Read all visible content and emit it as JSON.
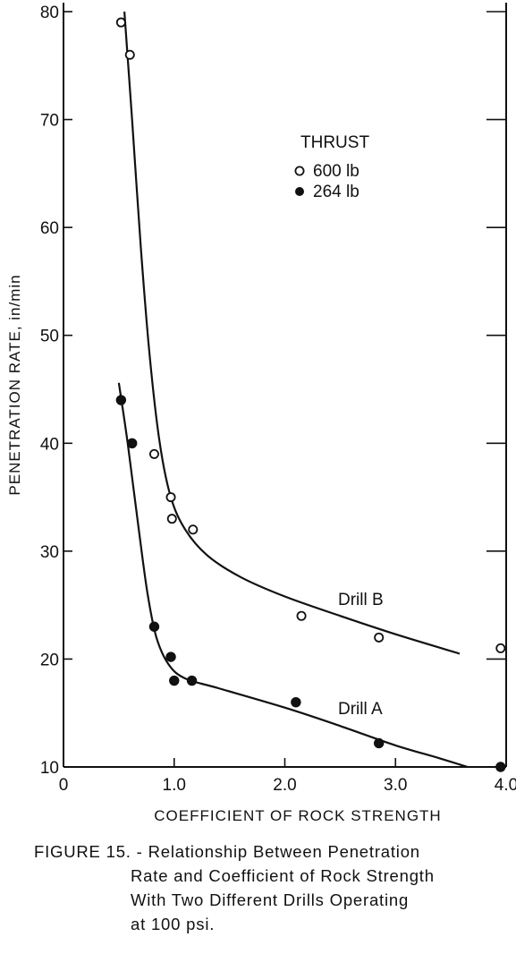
{
  "chart_data": {
    "type": "scatter",
    "xlabel": "COEFFICIENT OF ROCK STRENGTH",
    "ylabel": "PENETRATION RATE, in/min",
    "xlim": [
      0,
      4.0
    ],
    "ylim": [
      10,
      80
    ],
    "x_ticks": [
      0,
      1.0,
      2.0,
      3.0,
      4.0
    ],
    "x_tick_labels": [
      "0",
      "1.0",
      "2.0",
      "3.0",
      "4.0"
    ],
    "y_ticks": [
      10,
      20,
      30,
      40,
      50,
      60,
      70,
      80
    ],
    "y_tick_labels": [
      "10",
      "20",
      "30",
      "40",
      "50",
      "60",
      "70",
      "80"
    ],
    "grid": false,
    "legend": {
      "title": "THRUST",
      "position": "upper-right",
      "entries": [
        {
          "label": "600 lb",
          "marker": "open-circle"
        },
        {
          "label": "264 lb",
          "marker": "filled-circle"
        }
      ]
    },
    "series": [
      {
        "name": "600 lb",
        "marker": "open-circle",
        "points": [
          {
            "x": 0.52,
            "y": 79
          },
          {
            "x": 0.6,
            "y": 76
          },
          {
            "x": 0.82,
            "y": 39
          },
          {
            "x": 0.97,
            "y": 35
          },
          {
            "x": 0.98,
            "y": 33
          },
          {
            "x": 1.17,
            "y": 32
          },
          {
            "x": 2.15,
            "y": 24
          },
          {
            "x": 2.85,
            "y": 22
          },
          {
            "x": 3.95,
            "y": 21
          }
        ]
      },
      {
        "name": "264 lb",
        "marker": "filled-circle",
        "points": [
          {
            "x": 0.52,
            "y": 44
          },
          {
            "x": 0.62,
            "y": 40
          },
          {
            "x": 0.82,
            "y": 23
          },
          {
            "x": 0.97,
            "y": 20.2
          },
          {
            "x": 1.0,
            "y": 18
          },
          {
            "x": 1.16,
            "y": 18
          },
          {
            "x": 2.1,
            "y": 16
          },
          {
            "x": 2.85,
            "y": 12.2
          },
          {
            "x": 3.95,
            "y": 10
          }
        ]
      }
    ],
    "curves": [
      {
        "label": "Drill B",
        "points": [
          {
            "x": 0.55,
            "y": 80
          },
          {
            "x": 0.62,
            "y": 70
          },
          {
            "x": 0.7,
            "y": 58
          },
          {
            "x": 0.78,
            "y": 48
          },
          {
            "x": 0.87,
            "y": 40
          },
          {
            "x": 0.97,
            "y": 35
          },
          {
            "x": 1.1,
            "y": 32
          },
          {
            "x": 1.3,
            "y": 29.6
          },
          {
            "x": 1.6,
            "y": 27.6
          },
          {
            "x": 2.0,
            "y": 25.8
          },
          {
            "x": 2.5,
            "y": 24
          },
          {
            "x": 3.0,
            "y": 22.3
          },
          {
            "x": 3.58,
            "y": 20.5
          }
        ]
      },
      {
        "label": "Drill A",
        "points": [
          {
            "x": 0.5,
            "y": 45.6
          },
          {
            "x": 0.58,
            "y": 40
          },
          {
            "x": 0.68,
            "y": 32
          },
          {
            "x": 0.76,
            "y": 26
          },
          {
            "x": 0.84,
            "y": 22
          },
          {
            "x": 0.95,
            "y": 19.5
          },
          {
            "x": 1.1,
            "y": 18.2
          },
          {
            "x": 1.4,
            "y": 17.3
          },
          {
            "x": 2.0,
            "y": 15.5
          },
          {
            "x": 2.5,
            "y": 13.8
          },
          {
            "x": 3.0,
            "y": 12
          },
          {
            "x": 3.4,
            "y": 10.8
          },
          {
            "x": 3.65,
            "y": 10
          }
        ]
      }
    ]
  },
  "caption": {
    "lines": [
      "FIGURE 15. - Relationship Between Penetration",
      "Rate and Coefficient of Rock Strength",
      "With  Two Different  Drills  Operating",
      "at 100 psi."
    ]
  }
}
